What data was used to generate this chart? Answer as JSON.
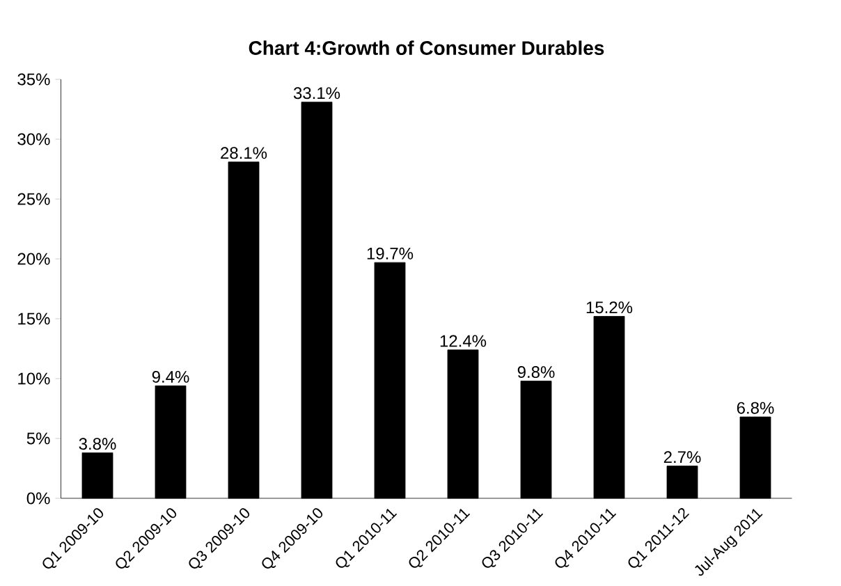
{
  "chart_data": {
    "type": "bar",
    "title": "Chart 4:Growth of Consumer Durables",
    "categories": [
      "Q1 2009-10",
      "Q2 2009-10",
      "Q3 2009-10",
      "Q4 2009-10",
      "Q1 2010-11",
      "Q2 2010-11",
      "Q3 2010-11",
      "Q4 2010-11",
      "Q1 2011-12",
      "Jul-Aug 2011"
    ],
    "values": [
      3.8,
      9.4,
      28.1,
      33.1,
      19.7,
      12.4,
      9.8,
      15.2,
      2.7,
      6.8
    ],
    "value_labels": [
      "3.8%",
      "9.4%",
      "28.1%",
      "33.1%",
      "19.7%",
      "12.4%",
      "9.8%",
      "15.2%",
      "2.7%",
      "6.8%"
    ],
    "color": "#000000",
    "ylim": [
      0,
      35
    ],
    "yticks": [
      {
        "value": 0,
        "label": "0%"
      },
      {
        "value": 5,
        "label": "5%"
      },
      {
        "value": 10,
        "label": "10%"
      },
      {
        "value": 15,
        "label": "15%"
      },
      {
        "value": 20,
        "label": "20%"
      },
      {
        "value": 25,
        "label": "25%"
      },
      {
        "value": 30,
        "label": "30%"
      },
      {
        "value": 35,
        "label": "35%"
      }
    ],
    "grid": false
  }
}
